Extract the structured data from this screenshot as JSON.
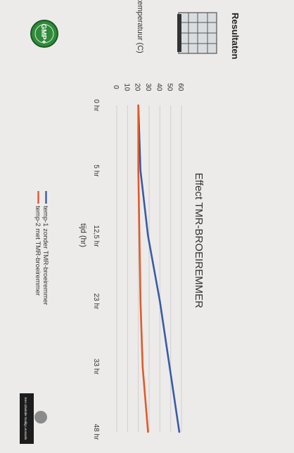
{
  "page": {
    "heading": "Resultaten"
  },
  "badges": {
    "gmp": "GMP+",
    "logo_caption": "Een Uitvinder Nodig Leonardo"
  },
  "colors": {
    "background": "#ecebea",
    "series1": "#3b5aa6",
    "series2": "#e25a28",
    "grid": "#cfcfcf",
    "text": "#333333",
    "gmp_green": "#2f8a3a"
  },
  "chart_data": {
    "type": "line",
    "title": "Effect  TMR-BROEIREMMER",
    "xlabel": "tijd (hr)",
    "ylabel": "temperatuur (C)",
    "categories": [
      "0 hr",
      "5 hr",
      "12,5 hr",
      "23 hr",
      "33 hr",
      "48 hr"
    ],
    "ylim": [
      0,
      60
    ],
    "yticks": [
      0,
      10,
      20,
      30,
      40,
      50,
      60
    ],
    "grid": true,
    "legend_position": "bottom",
    "series": [
      {
        "name": "temp-1 zonder TMR-broeiremmer",
        "color": "#3b5aa6",
        "values": [
          20,
          22,
          29,
          40,
          null,
          58
        ]
      },
      {
        "name": "temp-2 met TMR-broeiremmer",
        "color": "#e25a28",
        "values": [
          20,
          20,
          21,
          22,
          24,
          29
        ]
      }
    ]
  }
}
